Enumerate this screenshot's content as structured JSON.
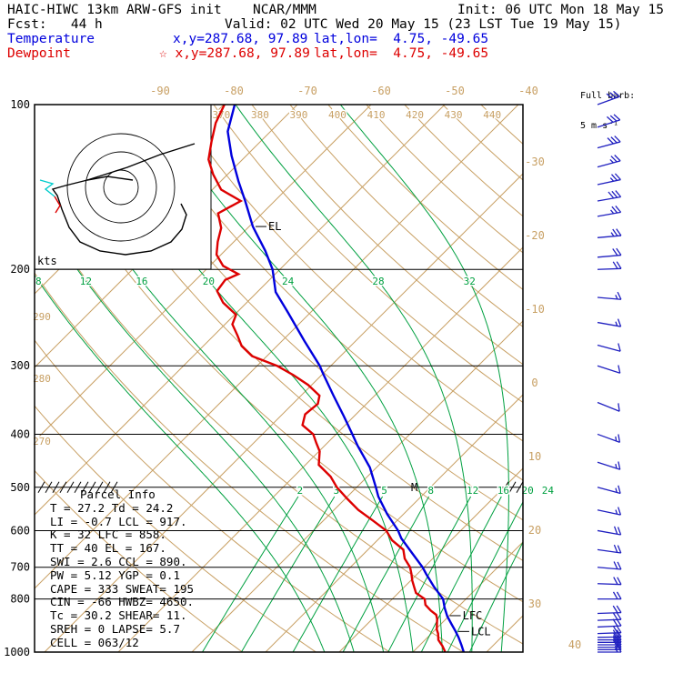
{
  "header": {
    "model_title": "HAIC-HIWC 13km ARW-GFS init",
    "center": "NCAR/MMM",
    "init": "Init: 06 UTC Mon 18 May 15",
    "fcst": "Fcst:   44 h",
    "valid": "Valid: 02 UTC Wed 20 May 15 (23 LST Tue 19 May 15)",
    "temperature_legend": "Temperature",
    "temp_xy": "x,y=287.68, 97.89",
    "temp_latlon": "lat,lon=  4.75, -49.65",
    "dewpoint_legend": "Dewpoint",
    "dew_xy": "☆ x,y=287.68, 97.89",
    "dew_latlon": "lat,lon=  4.75, -49.65"
  },
  "barb_legend": {
    "line1": "Full barb:",
    "line2": "5 m s⁻¹"
  },
  "parcel_info": {
    "title": "Parcel Info",
    "rows": [
      "T  =  27.2 Td =  24.2",
      "LI =  -0.7 LCL =  917.",
      "K  =    32 LFC =  858.",
      "TT =    40 EL  =  167.",
      "SWI =  2.6 CCL =  890.",
      "PW =  5.12 YGP =  0.1",
      "CAPE =  333 SWEAT= 195",
      "CIN  =  -66 HWBZ= 4650.",
      "Tc =  30.2 SHEAR=  11.",
      "SREH =    0 LAPSE= 5.7",
      "CELL = 063/12"
    ],
    "values": {
      "T": 27.2,
      "Td": 24.2,
      "LI": -0.7,
      "LCL": 917,
      "K": 32,
      "LFC": 858,
      "TT": 40,
      "EL": 167,
      "SWI": 2.6,
      "CCL": 890,
      "PW": 5.12,
      "YGP": 0.1,
      "CAPE": 333,
      "SWEAT": 195,
      "CIN": -66,
      "HWBZ": 4650,
      "Tc": 30.2,
      "SHEAR": 11,
      "SREH": 0,
      "LAPSE": 5.7,
      "CELL": "063/12"
    }
  },
  "chart_data": {
    "type": "skewt-log-p-sounding",
    "title": "HAIC-HIWC 13km ARW-GFS sounding",
    "colors": {
      "tan": "#c8a064",
      "green": "#00a040",
      "temperature": "#0000dd",
      "dewpoint": "#dd0000",
      "barb": "#2020c0"
    },
    "pressure_ticks_hpa": [
      100,
      200,
      300,
      400,
      500,
      600,
      700,
      800,
      1000
    ],
    "pressure_range_hpa": [
      100,
      1000
    ],
    "isotherms_c": {
      "min": -110,
      "max": 40,
      "step": 10
    },
    "isotherm_labels_top_c": [
      -90,
      -80,
      -70,
      -60,
      -50,
      -40
    ],
    "isotherm_labels_right_c": [
      -30,
      -20,
      -10,
      0,
      10,
      20,
      30,
      40
    ],
    "dry_adiabats_k": {
      "min": 270,
      "max": 440,
      "step": 10
    },
    "dry_adiabat_labels_top_k": [
      370,
      380,
      390,
      400,
      410,
      420,
      430,
      440
    ],
    "dry_adiabat_labels_left_k": [
      {
        "v": 290,
        "x": 46,
        "y": 352
      },
      {
        "v": 280,
        "x": 46,
        "y": 420
      },
      {
        "v": 270,
        "x": 46,
        "y": 489
      }
    ],
    "moist_adiabats_c": [
      8,
      12,
      16,
      20,
      24,
      28,
      32
    ],
    "mixing_ratio_gkg": [
      2,
      3,
      5,
      8,
      12,
      16,
      20,
      24
    ],
    "series": [
      {
        "name": "Temperature",
        "color": "#0000dd",
        "points": [
          [
            1000,
            26.9
          ],
          [
            970,
            25.6
          ],
          [
            940,
            24.2
          ],
          [
            917,
            23.0
          ],
          [
            890,
            21.5
          ],
          [
            860,
            19.8
          ],
          [
            830,
            18.3
          ],
          [
            800,
            16.9
          ],
          [
            760,
            14.0
          ],
          [
            720,
            11.2
          ],
          [
            700,
            9.8
          ],
          [
            660,
            6.5
          ],
          [
            620,
            3.0
          ],
          [
            600,
            1.5
          ],
          [
            560,
            -2.2
          ],
          [
            520,
            -5.8
          ],
          [
            500,
            -7.4
          ],
          [
            460,
            -10.9
          ],
          [
            420,
            -15.5
          ],
          [
            400,
            -17.8
          ],
          [
            370,
            -21.5
          ],
          [
            340,
            -25.6
          ],
          [
            310,
            -30.0
          ],
          [
            300,
            -31.5
          ],
          [
            270,
            -37.0
          ],
          [
            240,
            -43.0
          ],
          [
            220,
            -47.5
          ],
          [
            200,
            -51.0
          ],
          [
            185,
            -54.5
          ],
          [
            167,
            -59.5
          ],
          [
            150,
            -64.0
          ],
          [
            138,
            -67.6
          ],
          [
            124,
            -72.0
          ],
          [
            112,
            -75.8
          ],
          [
            100,
            -78.5
          ]
        ]
      },
      {
        "name": "Dewpoint",
        "color": "#dd0000",
        "points": [
          [
            1000,
            24.4
          ],
          [
            975,
            23.2
          ],
          [
            950,
            21.8
          ],
          [
            925,
            20.9
          ],
          [
            910,
            20.2
          ],
          [
            890,
            19.5
          ],
          [
            870,
            18.8
          ],
          [
            855,
            18.1
          ],
          [
            840,
            16.8
          ],
          [
            820,
            15.3
          ],
          [
            800,
            14.4
          ],
          [
            780,
            12.4
          ],
          [
            760,
            11.3
          ],
          [
            740,
            10.2
          ],
          [
            720,
            9.2
          ],
          [
            700,
            8.1
          ],
          [
            675,
            6.2
          ],
          [
            650,
            4.8
          ],
          [
            625,
            2.0
          ],
          [
            600,
            -0.1
          ],
          [
            575,
            -3.3
          ],
          [
            550,
            -6.7
          ],
          [
            525,
            -9.7
          ],
          [
            500,
            -12.7
          ],
          [
            478,
            -15.0
          ],
          [
            455,
            -18.2
          ],
          [
            430,
            -19.9
          ],
          [
            415,
            -21.5
          ],
          [
            400,
            -23.1
          ],
          [
            385,
            -25.8
          ],
          [
            368,
            -26.9
          ],
          [
            352,
            -26.6
          ],
          [
            340,
            -27.5
          ],
          [
            325,
            -30.5
          ],
          [
            312,
            -33.8
          ],
          [
            300,
            -37.3
          ],
          [
            288,
            -42.0
          ],
          [
            276,
            -44.8
          ],
          [
            264,
            -46.8
          ],
          [
            252,
            -49.0
          ],
          [
            242,
            -49.8
          ],
          [
            230,
            -53.2
          ],
          [
            219,
            -55.6
          ],
          [
            209,
            -56.0
          ],
          [
            204,
            -55.0
          ],
          [
            197,
            -58.2
          ],
          [
            188,
            -60.6
          ],
          [
            178,
            -62.2
          ],
          [
            168,
            -63.6
          ],
          [
            158,
            -66.0
          ],
          [
            150,
            -64.6
          ],
          [
            143,
            -68.8
          ],
          [
            134,
            -72.0
          ],
          [
            126,
            -74.6
          ],
          [
            117,
            -76.6
          ],
          [
            108,
            -78.6
          ],
          [
            100,
            -79.9
          ]
        ]
      }
    ],
    "markers": [
      {
        "text": "EL",
        "p": 167
      },
      {
        "text": "LFC",
        "p": 858
      },
      {
        "text": "LCL",
        "p": 917
      },
      {
        "text": "M",
        "x": 452,
        "y": 540
      }
    ],
    "hatches": {
      "p": 500,
      "segments": [
        [
          42,
          128
        ],
        [
          552,
          572
        ]
      ]
    },
    "hodograph": {
      "box": {
        "w": 194,
        "h": 181
      },
      "center": [
        133,
        206
      ],
      "rings": [
        19,
        39,
        59
      ],
      "units_label": "kts",
      "label_pos": [
        41,
        291
      ],
      "traces": [
        {
          "color": "#000000",
          "points": [
            [
              146,
              198
            ],
            [
              118,
              194
            ],
            [
              96,
              198
            ],
            [
              72,
              204
            ],
            [
              58,
              208
            ],
            [
              63,
              215
            ],
            [
              68,
              230
            ],
            [
              76,
              250
            ],
            [
              88,
              266
            ],
            [
              110,
              276
            ],
            [
              138,
              280
            ],
            [
              166,
              276
            ],
            [
              188,
              266
            ],
            [
              200,
              252
            ],
            [
              205,
              236
            ],
            [
              199,
              224
            ]
          ]
        },
        {
          "color": "#000000",
          "points": [
            [
              96,
              198
            ],
            [
              140,
              184
            ],
            [
              176,
              170
            ],
            [
              214,
              158
            ]
          ]
        },
        {
          "color": "#00cccc",
          "points": [
            [
              44,
              198
            ],
            [
              58,
              202
            ],
            [
              50,
              208
            ],
            [
              60,
              216
            ]
          ]
        },
        {
          "color": "#dd0000",
          "points": [
            [
              60,
              216
            ],
            [
              66,
              226
            ],
            [
              61,
              234
            ]
          ]
        }
      ]
    },
    "wind_barbs": {
      "full_barb_ms": 5,
      "color": "#2020c0",
      "levels": [
        [
          100,
          70,
          15
        ],
        [
          110,
          72,
          15
        ],
        [
          120,
          75,
          15
        ],
        [
          130,
          75,
          12.5
        ],
        [
          140,
          78,
          12.5
        ],
        [
          150,
          80,
          15
        ],
        [
          160,
          80,
          12.5
        ],
        [
          175,
          85,
          12.5
        ],
        [
          190,
          85,
          10
        ],
        [
          200,
          88,
          10
        ],
        [
          225,
          95,
          7.5
        ],
        [
          250,
          100,
          7.5
        ],
        [
          275,
          105,
          5
        ],
        [
          300,
          108,
          5
        ],
        [
          350,
          112,
          5
        ],
        [
          400,
          110,
          7.5
        ],
        [
          450,
          108,
          7.5
        ],
        [
          500,
          105,
          7.5
        ],
        [
          550,
          102,
          7.5
        ],
        [
          600,
          100,
          10
        ],
        [
          650,
          98,
          10
        ],
        [
          700,
          95,
          10
        ],
        [
          750,
          92,
          10
        ],
        [
          800,
          90,
          10
        ],
        [
          850,
          88,
          10
        ],
        [
          875,
          88,
          10
        ],
        [
          900,
          87,
          10
        ],
        [
          925,
          88,
          10
        ],
        [
          940,
          89,
          10
        ],
        [
          950,
          90,
          10
        ],
        [
          960,
          90,
          10
        ],
        [
          970,
          90,
          10
        ],
        [
          980,
          90,
          10
        ],
        [
          990,
          90,
          7.5
        ],
        [
          1000,
          90,
          7.5
        ]
      ]
    }
  }
}
